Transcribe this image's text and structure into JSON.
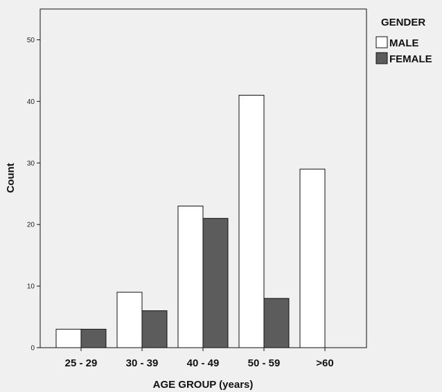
{
  "chart_data": {
    "type": "bar",
    "title": "",
    "xlabel": "AGE GROUP (years)",
    "ylabel": "Count",
    "categories": [
      "25 - 29",
      "30 - 39",
      "40 - 49",
      "50 - 59",
      ">60"
    ],
    "series": [
      {
        "name": "MALE",
        "values": [
          3,
          9,
          23,
          41,
          29
        ],
        "color": "#ffffff"
      },
      {
        "name": "FEMALE",
        "values": [
          3,
          6,
          21,
          8,
          0
        ],
        "color": "#5c5c5c"
      }
    ],
    "ylim": [
      0,
      55
    ],
    "yticks": [
      0,
      10,
      20,
      30,
      40,
      50
    ],
    "grid": false,
    "legend": {
      "title": "GENDER",
      "placement": "right"
    },
    "colors": {
      "background": "#f0f0f0",
      "bar_stroke": "#111111"
    }
  }
}
